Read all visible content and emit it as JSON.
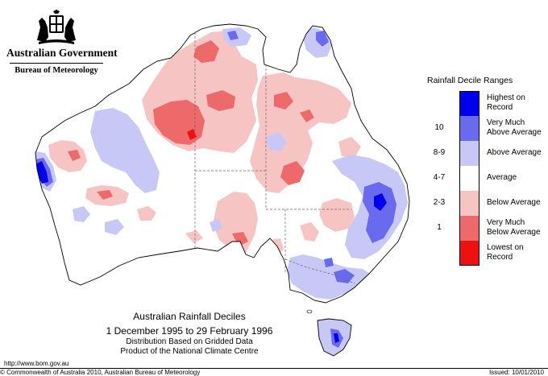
{
  "header": {
    "government": "Australian Government",
    "bureau": "Bureau of Meteorology",
    "crest_icon": "commonwealth-coat-of-arms-icon"
  },
  "map": {
    "region": "Australia",
    "background_color": "#ffffff",
    "state_boundaries": "dashed"
  },
  "legend": {
    "title": "Rainfall Decile Ranges",
    "items": [
      {
        "range": "",
        "label": "Highest on Record",
        "color": "#0000ee"
      },
      {
        "range": "10",
        "label": "Very Much Above Average",
        "color": "#6a6aee"
      },
      {
        "range": "8-9",
        "label": "Above Average",
        "color": "#c8c8f6"
      },
      {
        "range": "4-7",
        "label": "Average",
        "color": "#ffffff"
      },
      {
        "range": "2-3",
        "label": "Below Average",
        "color": "#f7c4c4"
      },
      {
        "range": "1",
        "label": "Very Much Below Average",
        "color": "#ee6a6a"
      },
      {
        "range": "",
        "label": "Lowest on Record",
        "color": "#ee1111"
      }
    ]
  },
  "caption": {
    "title": "Australian Rainfall Deciles",
    "dates": "1 December 1995 to 29 February 1996",
    "line1": "Distribution Based on Gridded Data",
    "line2": "Product of the National Climate Centre"
  },
  "footer": {
    "url": "http://www.bom.gov.au",
    "copyright": "© Commonwealth of Australia 2010, Australian Bureau of Meteorology",
    "issued": "Issued: 10/01/2010"
  }
}
